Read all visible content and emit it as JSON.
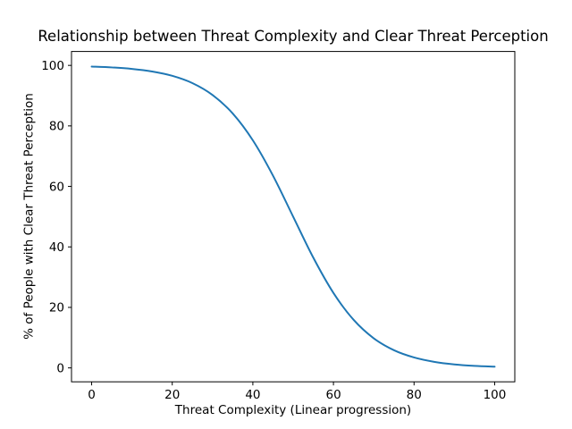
{
  "figure": {
    "background": "#ffffff"
  },
  "chart_data": {
    "type": "line",
    "title": "Relationship between Threat Complexity and Clear Threat Perception",
    "xlabel": "Threat Complexity (Linear progression)",
    "ylabel": "% of People with Clear Threat Perception",
    "x_ticks": [
      0,
      20,
      40,
      60,
      80,
      100
    ],
    "y_ticks": [
      0,
      20,
      40,
      60,
      80,
      100
    ],
    "xlim": [
      -5,
      105
    ],
    "ylim": [
      -4.6,
      104.6
    ],
    "grid": false,
    "legend": false,
    "appearance": {
      "line_color": "#1f77b4",
      "line_width": 2,
      "axis_color": "#000000",
      "text_color": "#000000",
      "background": "#ffffff"
    },
    "series": [
      {
        "x": [
          0,
          5,
          10,
          15,
          20,
          25,
          30,
          35,
          40,
          45,
          50,
          55,
          60,
          65,
          70,
          75,
          80,
          85,
          90,
          95,
          100
        ],
        "y": [
          99.61,
          99.33,
          98.84,
          97.99,
          96.56,
          94.15,
          90.22,
          84.11,
          75.23,
          63.55,
          50.0,
          36.45,
          24.77,
          15.89,
          9.78,
          5.85,
          3.45,
          2.01,
          1.16,
          0.67,
          0.39
        ]
      }
    ]
  }
}
